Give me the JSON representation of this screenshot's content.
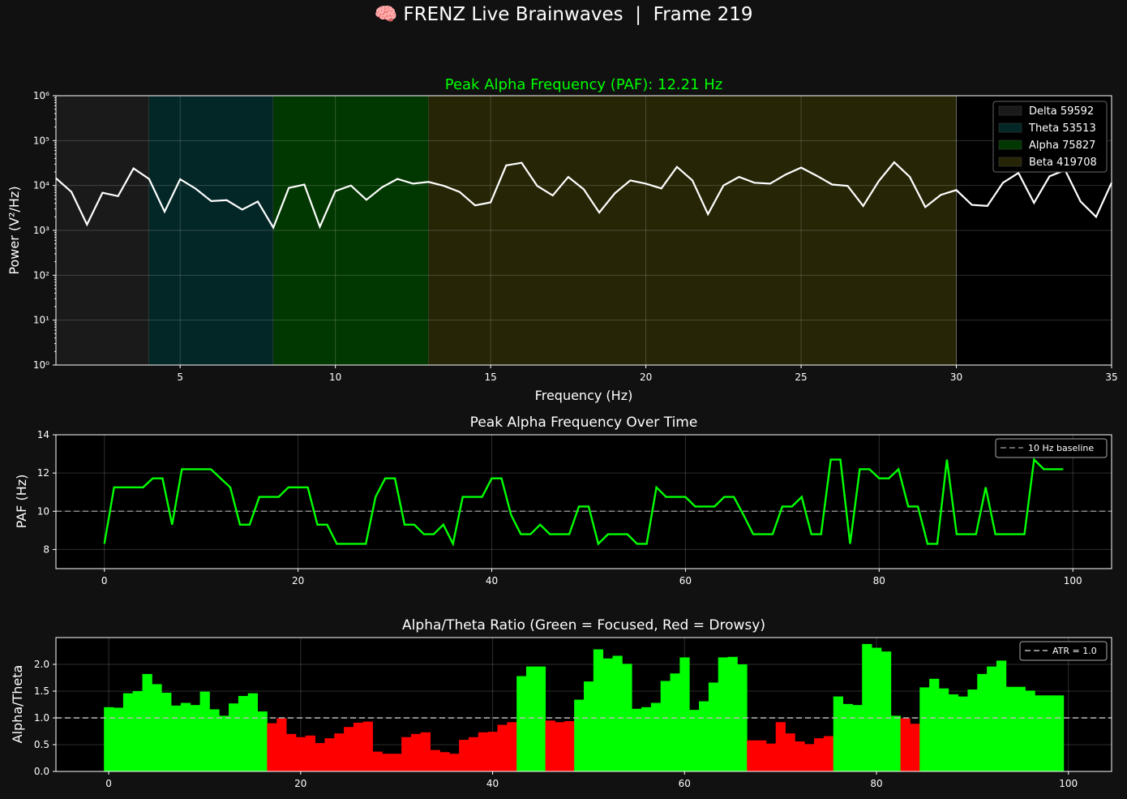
{
  "figure": {
    "suptitle": "🧠 FRENZ Live Brainwaves  |  Frame 219"
  },
  "chart_data": [
    {
      "type": "line",
      "title": "Peak Alpha Frequency (PAF): 12.21 Hz",
      "xlabel": "Frequency (Hz)",
      "ylabel": "Power (V²/Hz)",
      "yscale": "log",
      "xlim": [
        1,
        35
      ],
      "ylim": [
        1,
        1000000
      ],
      "xticks": [
        5,
        10,
        15,
        20,
        25,
        30,
        35
      ],
      "yticks": [
        1,
        10,
        100,
        1000,
        10000,
        100000,
        1000000
      ],
      "ytick_labels": [
        "10⁰",
        "10¹",
        "10²",
        "10³",
        "10⁴",
        "10⁵",
        "10⁶"
      ],
      "grid": true,
      "legend_position": "upper-right",
      "bands": [
        {
          "label": "Delta 59592",
          "from": 1,
          "to": 4,
          "color": "#1a1a1a"
        },
        {
          "label": "Theta 53513",
          "from": 4,
          "to": 8,
          "color": "#032627"
        },
        {
          "label": "Alpha 75827",
          "from": 8,
          "to": 13,
          "color": "#013700"
        },
        {
          "label": "Beta 419708",
          "from": 13,
          "to": 30,
          "color": "#262506"
        }
      ],
      "line_color": "#ffffff",
      "x": [
        1.0,
        1.5,
        2.0,
        2.5,
        3.0,
        3.5,
        4.0,
        4.5,
        5.0,
        5.5,
        6.0,
        6.5,
        7.0,
        7.5,
        8.0,
        8.5,
        9.0,
        9.5,
        10.0,
        10.5,
        11.0,
        11.5,
        12.0,
        12.5,
        13.0,
        13.5,
        14.0,
        14.5,
        15.0,
        15.5,
        16.0,
        16.5,
        17.0,
        17.5,
        18.0,
        18.5,
        19.0,
        19.5,
        20.0,
        20.5,
        21.0,
        21.5,
        22.0,
        22.5,
        23.0,
        23.5,
        24.0,
        24.5,
        25.0,
        25.5,
        26.0,
        26.5,
        27.0,
        27.5,
        28.0,
        28.5,
        29.0,
        29.5,
        30.0,
        30.5,
        31.0,
        31.5,
        32.0,
        32.5,
        33.0,
        33.5,
        34.0,
        34.5,
        35.0
      ],
      "y": [
        14500,
        7200,
        1350,
        6900,
        5800,
        24000,
        14000,
        2600,
        13800,
        8500,
        4500,
        4700,
        2900,
        4400,
        1150,
        8800,
        10500,
        1200,
        7500,
        10000,
        4800,
        9100,
        14000,
        11000,
        12000,
        9800,
        7200,
        3600,
        4200,
        28000,
        32000,
        9800,
        6000,
        15500,
        8200,
        2500,
        6700,
        13000,
        11000,
        8600,
        26000,
        13000,
        2300,
        10000,
        15500,
        11500,
        11000,
        17500,
        25000,
        16500,
        10500,
        9800,
        3500,
        12500,
        33000,
        15500,
        3300,
        6200,
        7900,
        3700,
        3500,
        11500,
        19000,
        4100,
        16000,
        22000,
        4400,
        2000,
        11500
      ]
    },
    {
      "type": "line",
      "title": "Peak Alpha Frequency Over Time",
      "xlabel": "",
      "ylabel": "PAF (Hz)",
      "xlim": [
        -5,
        104
      ],
      "ylim": [
        7,
        14
      ],
      "xticks": [
        0,
        20,
        40,
        60,
        80,
        100
      ],
      "yticks": [
        8,
        10,
        12,
        14
      ],
      "grid": true,
      "legend_position": "upper-right",
      "baseline": {
        "label": "10 Hz baseline",
        "value": 10,
        "color": "#888888"
      },
      "line_color": "#00ff00",
      "values": [
        8.3,
        11.25,
        11.25,
        11.25,
        11.25,
        11.72,
        11.72,
        9.3,
        12.2,
        12.2,
        12.2,
        12.2,
        11.72,
        11.25,
        9.3,
        9.3,
        10.75,
        10.75,
        10.75,
        11.25,
        11.25,
        11.25,
        9.3,
        9.3,
        8.3,
        8.3,
        8.3,
        8.3,
        10.75,
        11.72,
        11.72,
        9.3,
        9.3,
        8.8,
        8.8,
        9.3,
        8.3,
        10.75,
        10.75,
        10.75,
        11.72,
        11.72,
        9.8,
        8.8,
        8.8,
        9.3,
        8.8,
        8.8,
        8.8,
        10.25,
        10.25,
        8.3,
        8.8,
        8.8,
        8.8,
        8.3,
        8.3,
        11.25,
        10.75,
        10.75,
        10.75,
        10.25,
        10.25,
        10.25,
        10.75,
        10.75,
        9.8,
        8.8,
        8.8,
        8.8,
        10.25,
        10.25,
        10.75,
        8.8,
        8.8,
        12.7,
        12.7,
        8.3,
        12.2,
        12.2,
        11.72,
        11.72,
        12.2,
        10.25,
        10.25,
        8.3,
        8.3,
        12.7,
        8.8,
        8.8,
        8.8,
        11.25,
        8.8,
        8.8,
        8.8,
        8.8,
        12.7,
        12.2,
        12.2,
        12.2
      ]
    },
    {
      "type": "bar",
      "title": "Alpha/Theta Ratio (Green = Focused, Red = Drowsy)",
      "xlabel": "",
      "ylabel": "Alpha/Theta",
      "xlim": [
        -5.5,
        104.5
      ],
      "ylim": [
        0,
        2.5
      ],
      "xticks": [
        0,
        20,
        40,
        60,
        80,
        100
      ],
      "yticks": [
        0.0,
        0.5,
        1.0,
        1.5,
        2.0
      ],
      "ytick_labels": [
        "0.0",
        "0.5",
        "1.0",
        "1.5",
        "2.0"
      ],
      "grid": true,
      "legend_position": "upper-right",
      "threshold": {
        "label": "ATR = 1.0",
        "value": 1.0,
        "color": "#bbbbbb"
      },
      "color_focused": "#00ff00",
      "color_drowsy": "#ff0000",
      "values": [
        1.2,
        1.19,
        1.46,
        1.5,
        1.82,
        1.63,
        1.47,
        1.23,
        1.28,
        1.24,
        1.49,
        1.16,
        1.04,
        1.27,
        1.41,
        1.46,
        1.12,
        0.9,
        0.99,
        0.7,
        0.64,
        0.67,
        0.53,
        0.62,
        0.71,
        0.83,
        0.91,
        0.93,
        0.37,
        0.33,
        0.33,
        0.64,
        0.7,
        0.73,
        0.4,
        0.36,
        0.33,
        0.59,
        0.64,
        0.73,
        0.74,
        0.87,
        0.92,
        1.78,
        1.96,
        1.96,
        0.95,
        0.92,
        0.94,
        1.34,
        1.68,
        2.28,
        2.11,
        2.16,
        2.01,
        1.17,
        1.2,
        1.28,
        1.69,
        1.83,
        2.13,
        1.15,
        1.31,
        1.66,
        2.13,
        2.14,
        2.0,
        0.58,
        0.58,
        0.52,
        0.92,
        0.71,
        0.56,
        0.51,
        0.62,
        0.66,
        1.4,
        1.26,
        1.24,
        2.38,
        2.31,
        2.24,
        1.04,
        0.99,
        0.89,
        1.57,
        1.73,
        1.55,
        1.44,
        1.4,
        1.53,
        1.82,
        1.96,
        2.07,
        1.58,
        1.58,
        1.51,
        1.42,
        1.42,
        1.42
      ]
    }
  ]
}
